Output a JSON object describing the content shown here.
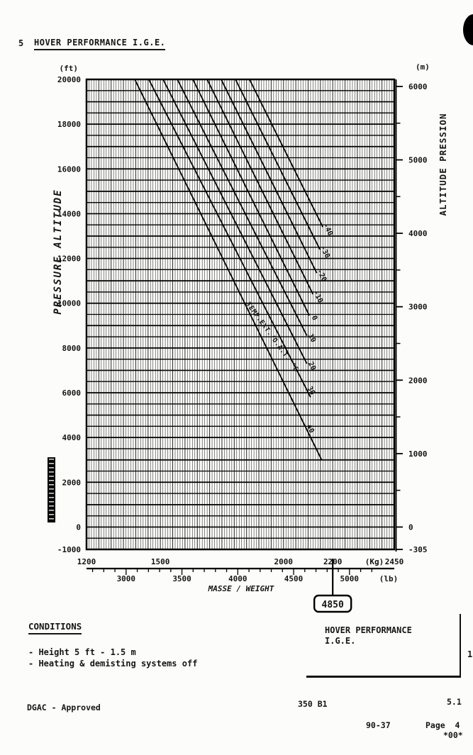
{
  "page": {
    "section_number": "5",
    "title": "HOVER PERFORMANCE I.G.E.",
    "conditions": {
      "heading": "CONDITIONS",
      "items": [
        "- Height 5 ft - 1.5 m",
        "- Heating & demisting systems off"
      ]
    },
    "caption_box": {
      "line1": "HOVER PERFORMANCE",
      "line2": "I.G.E."
    },
    "footer": {
      "approval": "DGAC - Approved",
      "aircraft": "350 B1",
      "chapter": "5.1",
      "revision": "90-37",
      "page_label": "Page  4",
      "effectivity": "*00*",
      "margin_mark": "1"
    },
    "artifacts": {
      "corner_mark_icon": "scan-corner-mark",
      "side_stamp_icon": "vertical-reference-stamp"
    }
  },
  "chart_data": {
    "type": "line",
    "title": "HOVER PERFORMANCE I.G.E.",
    "grid": true,
    "x_axis": {
      "label": "MASSE / WEIGHT",
      "kg": {
        "unit_label": "(Kg)",
        "range": [
          1200,
          2450
        ],
        "tick_labels": [
          1200,
          1500,
          2000,
          2200,
          2450
        ],
        "gridline_step_kg": 10
      },
      "lb": {
        "unit_label": "(lb)",
        "tick_labels": [
          3000,
          3500,
          4000,
          4500,
          5000
        ],
        "minor_tick_step_lb": 100,
        "tick_range_lb": [
          2700,
          5200
        ]
      }
    },
    "y_axis_left": {
      "label": "PRESSURE ALTITUDE",
      "unit_label": "(ft)",
      "range": [
        -1000,
        20000
      ],
      "tick_labels": [
        20000,
        18000,
        16000,
        14000,
        12000,
        10000,
        8000,
        6000,
        4000,
        2000,
        0,
        -1000
      ],
      "gridline_step_ft": 500
    },
    "y_axis_right": {
      "label": "ALTITUDE PRESSION",
      "unit_label": "(m)",
      "tick_labels": [
        6000,
        5000,
        4000,
        3000,
        2000,
        1000,
        0,
        -305
      ],
      "minor_ticks": [
        5500,
        4500,
        3500,
        2500,
        1500,
        500
      ]
    },
    "series_label": "TEMP.EXT./O.A.T. °C",
    "series_label_rotation_deg": 54,
    "series": [
      {
        "name": "40",
        "points_kg_ft": [
          [
            1396,
            20000
          ],
          [
            2155,
            3000
          ]
        ],
        "label_at_ft": 4550
      },
      {
        "name": "30",
        "points_kg_ft": [
          [
            1453,
            20000
          ],
          [
            2110,
            5800
          ]
        ],
        "label_at_ft": 6250
      },
      {
        "name": "20",
        "points_kg_ft": [
          [
            1511,
            20000
          ],
          [
            2095,
            7300
          ]
        ],
        "label_at_ft": 7350
      },
      {
        "name": "10",
        "points_kg_ft": [
          [
            1569,
            20000
          ],
          [
            2095,
            8550
          ]
        ],
        "label_at_ft": 8600
      },
      {
        "name": "0",
        "points_kg_ft": [
          [
            1632,
            20000
          ],
          [
            2105,
            9450
          ]
        ],
        "label_at_ft": 9500
      },
      {
        "name": "-10",
        "points_kg_ft": [
          [
            1690,
            20000
          ],
          [
            2120,
            10400
          ]
        ],
        "label_at_ft": 10450
      },
      {
        "name": "-20",
        "points_kg_ft": [
          [
            1747,
            20000
          ],
          [
            2135,
            11350
          ]
        ],
        "label_at_ft": 11400
      },
      {
        "name": "-30",
        "points_kg_ft": [
          [
            1805,
            20000
          ],
          [
            2148,
            12400
          ]
        ],
        "label_at_ft": 12450
      },
      {
        "name": "-40",
        "points_kg_ft": [
          [
            1862,
            20000
          ],
          [
            2160,
            13400
          ]
        ],
        "label_at_ft": 13450
      }
    ],
    "weight_marker": {
      "kg": 2200,
      "label": "4850"
    }
  }
}
